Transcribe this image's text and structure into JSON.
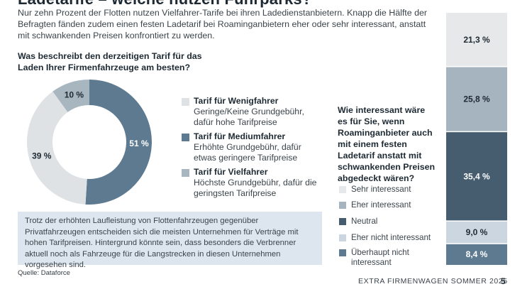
{
  "page": {
    "title": "Ladetarife – welche nutzen Fuhrparks?",
    "intro": "Nur zehn Prozent der Flotten nutzen Vielfahrer-Tarife bei ihren Ladedienstanbietern. Knapp die Hälfte der Befragten fänden zudem einen festen Ladetarif bei Roaminganbietern eher oder sehr interessant, anstatt mit schwankenden Preisen konfrontiert zu werden.",
    "note": "Trotz der erhöhten Laufleistung von Flottenfahrzeugen gegenüber Privatfahrzeugen entscheiden sich die meisten Unternehmen für Verträge mit hohen Tarifpreisen. Hintergrund könnte sein, dass besonders die Verbrenner aktuell noch als Fahrzeuge für die Langstrecken in diesen Unternehmen vorgesehen sind.",
    "source": "Quelle: Dataforce",
    "footer": "EXTRA FIRMENWAGEN SOMMER 2025",
    "page_number": "5"
  },
  "chart_data": [
    {
      "type": "pie",
      "title": "Was beschreibt den derzeitigen Tarif für das Laden Ihrer Firmenfahrzeuge am besten?",
      "unit": "%",
      "slices": [
        {
          "name": "Tarif für Wenigfahrer",
          "description": "Geringe/Keine Grundgebühr, dafür hohe Tarifpreise",
          "value": 39,
          "label": "39 %",
          "color": "#dfe2e5",
          "text_color": "#1e2a33"
        },
        {
          "name": "Tarif für Mediumfahrer",
          "description": "Erhöhte Grundgebühr, dafür etwas geringere Tarifpreise",
          "value": 51,
          "label": "51 %",
          "color": "#5d7a90",
          "text_color": "#ffffff"
        },
        {
          "name": "Tarif für Vielfahrer",
          "description": "Höchste Grundgebühr, dafür die geringsten Tarifpreise",
          "value": 10,
          "label": "10 %",
          "color": "#a8b6c0",
          "text_color": "#1e2a33"
        }
      ]
    },
    {
      "type": "bar",
      "stacked": true,
      "title": "Wie interessant wäre es für Sie, wenn Roaminganbieter auch mit einem festen Ladetarif anstatt mit schwankenden Preisen abgedeckt wären?",
      "unit": "%",
      "series": [
        {
          "name": "Sehr interessant",
          "value": 21.3,
          "label": "21,3 %",
          "color": "#e6e8ea",
          "text_color": "#1e2a33"
        },
        {
          "name": "Eher interessant",
          "value": 25.8,
          "label": "25,8 %",
          "color": "#a5b4bf",
          "text_color": "#1e2a33"
        },
        {
          "name": "Neutral",
          "value": 35.4,
          "label": "35,4 %",
          "color": "#465d70",
          "text_color": "#ffffff"
        },
        {
          "name": "Eher nicht interessant",
          "value": 9.0,
          "label": "9,0 %",
          "color": "#ccd6e0",
          "text_color": "#1e2a33"
        },
        {
          "name": "Überhaupt nicht interessant",
          "value": 8.4,
          "label": "8,4 %",
          "color": "#5d7a90",
          "text_color": "#ffffff"
        }
      ]
    }
  ]
}
